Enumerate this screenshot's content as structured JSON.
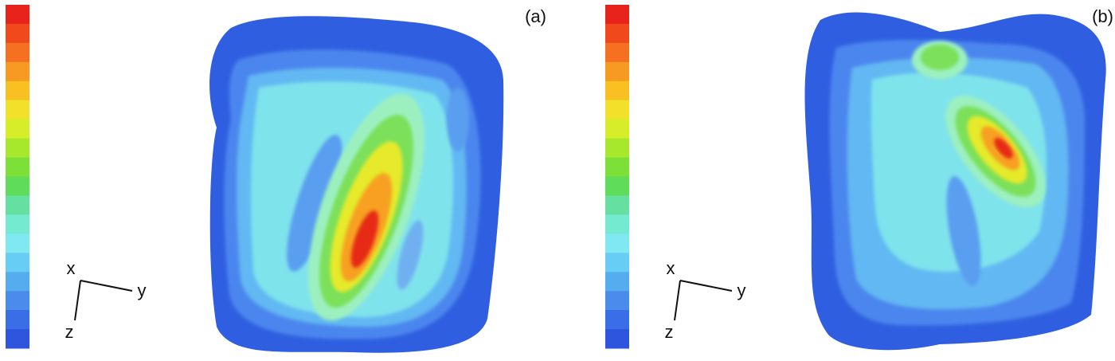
{
  "panels": [
    {
      "label": "(a)",
      "axes": {
        "x": "x",
        "y": "y",
        "z": "z"
      }
    },
    {
      "label": "(b)",
      "axes": {
        "x": "x",
        "y": "y",
        "z": "z"
      }
    }
  ]
}
